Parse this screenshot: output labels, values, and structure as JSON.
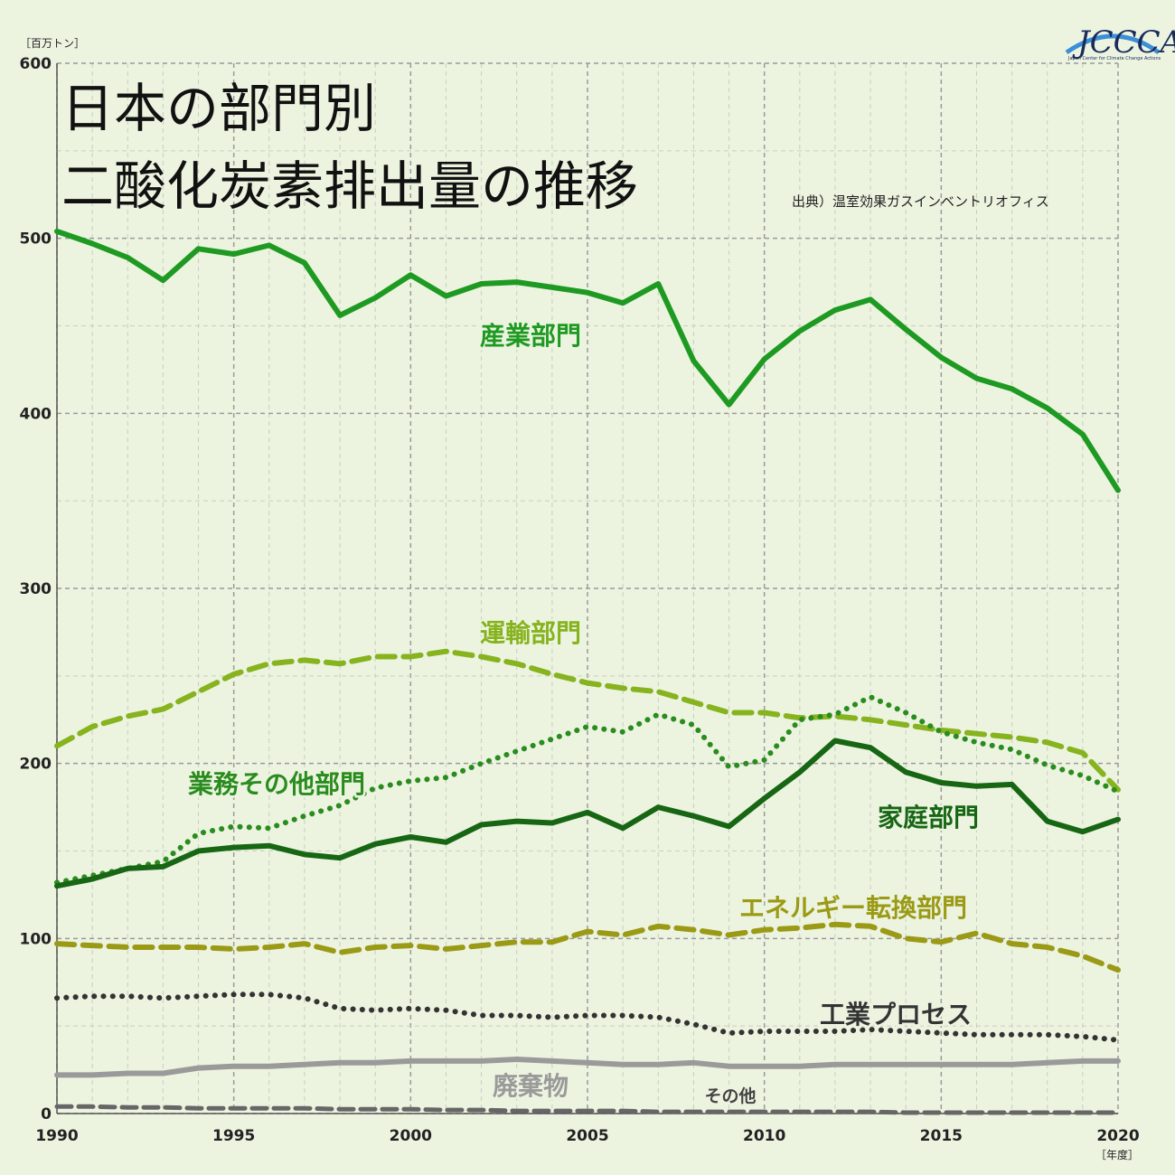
{
  "title_line1": "日本の部門別",
  "title_line2": "二酸化炭素排出量の推移",
  "source": "出典）温室効果ガスインベントリオフィス",
  "logo": {
    "text": "JCCCA",
    "subtitle": "Japan Center for Climate Change Actions",
    "color": "#1a2a5a"
  },
  "chart_data": {
    "type": "line",
    "title": "日本の部門別二酸化炭素排出量の推移",
    "ylabel": "［百万トン］",
    "xlabel": "［年度］",
    "ylim": [
      0,
      600
    ],
    "xlim": [
      1990,
      2020
    ],
    "yticks": [
      "0",
      "100",
      "200",
      "300",
      "400",
      "500",
      "600"
    ],
    "xticks": [
      "1990",
      "1995",
      "2000",
      "2005",
      "2010",
      "2015",
      "2020"
    ],
    "grid": true,
    "x": [
      1990,
      1991,
      1992,
      1993,
      1994,
      1995,
      1996,
      1997,
      1998,
      1999,
      2000,
      2001,
      2002,
      2003,
      2004,
      2005,
      2006,
      2007,
      2008,
      2009,
      2010,
      2011,
      2012,
      2013,
      2014,
      2015,
      2016,
      2017,
      2018,
      2019,
      2020
    ],
    "series": [
      {
        "name": "産業部門",
        "color": "#1e9a22",
        "style": "solid",
        "width": 6,
        "values": [
          504,
          497,
          489,
          476,
          494,
          491,
          496,
          486,
          456,
          466,
          479,
          467,
          474,
          475,
          472,
          469,
          463,
          474,
          430,
          405,
          431,
          447,
          459,
          465,
          448,
          432,
          420,
          414,
          403,
          388,
          356
        ]
      },
      {
        "name": "運輸部門",
        "color": "#86b31e",
        "style": "dashed",
        "width": 6,
        "values": [
          210,
          221,
          227,
          231,
          241,
          251,
          257,
          259,
          257,
          261,
          261,
          264,
          261,
          257,
          251,
          246,
          243,
          241,
          235,
          229,
          229,
          226,
          227,
          225,
          222,
          219,
          217,
          215,
          212,
          206,
          185
        ]
      },
      {
        "name": "業務その他部門",
        "color": "#2a8c1e",
        "style": "dotted",
        "width": 6,
        "values": [
          132,
          136,
          140,
          144,
          160,
          164,
          163,
          170,
          176,
          186,
          190,
          192,
          200,
          207,
          214,
          221,
          218,
          228,
          222,
          198,
          202,
          225,
          228,
          238,
          229,
          218,
          212,
          208,
          199,
          193,
          184
        ]
      },
      {
        "name": "家庭部門",
        "color": "#176614",
        "style": "solid",
        "width": 6,
        "values": [
          130,
          134,
          140,
          141,
          150,
          152,
          153,
          148,
          146,
          154,
          158,
          155,
          165,
          167,
          166,
          172,
          163,
          175,
          170,
          164,
          180,
          195,
          213,
          209,
          195,
          189,
          187,
          188,
          167,
          161,
          168
        ]
      },
      {
        "name": "エネルギー転換部門",
        "color": "#9b9a16",
        "style": "dashed",
        "width": 6,
        "values": [
          97,
          96,
          95,
          95,
          95,
          94,
          95,
          97,
          92,
          95,
          96,
          94,
          96,
          98,
          98,
          104,
          102,
          107,
          105,
          102,
          105,
          106,
          108,
          107,
          100,
          98,
          103,
          97,
          95,
          90,
          82
        ]
      },
      {
        "name": "工業プロセス",
        "color": "#333333",
        "style": "dotted",
        "width": 6,
        "values": [
          66,
          67,
          67,
          66,
          67,
          68,
          68,
          66,
          60,
          59,
          60,
          59,
          56,
          56,
          55,
          56,
          56,
          55,
          51,
          46,
          47,
          47,
          47,
          48,
          47,
          46,
          45,
          45,
          45,
          44,
          42
        ]
      },
      {
        "name": "廃棄物",
        "color": "#9a9a9a",
        "style": "solid",
        "width": 6,
        "values": [
          22,
          22,
          23,
          23,
          26,
          27,
          27,
          28,
          29,
          29,
          30,
          30,
          30,
          31,
          30,
          29,
          28,
          28,
          29,
          27,
          27,
          27,
          28,
          28,
          28,
          28,
          28,
          28,
          29,
          30,
          30
        ]
      },
      {
        "name": "その他",
        "color": "#666666",
        "style": "dashed",
        "width": 5,
        "values": [
          4,
          4,
          3.5,
          3.5,
          3,
          3,
          3,
          3,
          2.5,
          2.5,
          2.5,
          2,
          2,
          1.5,
          1.5,
          1.5,
          1.5,
          1,
          1,
          1,
          1,
          1,
          1,
          1,
          0.5,
          0.5,
          0.5,
          0.5,
          0.5,
          0.5,
          0.5
        ]
      }
    ]
  }
}
